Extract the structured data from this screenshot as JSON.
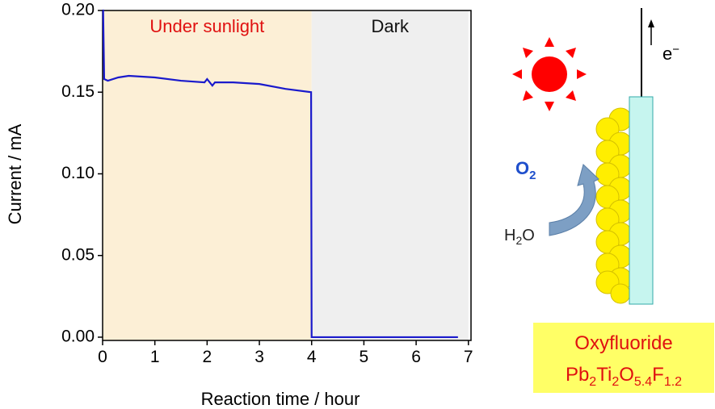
{
  "chart_data": {
    "type": "line",
    "ylabel": "Current / mA",
    "xlabel": "Reaction time / hour",
    "x": [
      0,
      0.01,
      0.03,
      0.1,
      0.3,
      0.5,
      1,
      1.5,
      1.95,
      2.0,
      2.05,
      2.1,
      2.15,
      2.5,
      3,
      3.5,
      3.99,
      4.0,
      4.2,
      5,
      6,
      6.8
    ],
    "values": [
      0.2,
      0.2,
      0.158,
      0.157,
      0.159,
      0.16,
      0.159,
      0.157,
      0.156,
      0.158,
      0.156,
      0.154,
      0.156,
      0.156,
      0.155,
      0.152,
      0.15,
      0.0,
      0.0,
      0.0,
      0.0,
      0.0
    ],
    "color": "#1a1acc",
    "regions": [
      {
        "label": "Under sunlight",
        "start": 0,
        "end": 4,
        "color": "#fcefd6",
        "label_color": "#e01010"
      },
      {
        "label": "Dark",
        "start": 4,
        "end": 7,
        "color": "#efefef",
        "label_color": "#111111"
      }
    ],
    "xlim": [
      0,
      7.05
    ],
    "ylim": [
      -0.002,
      0.2
    ],
    "xticks": [
      0,
      1,
      2,
      3,
      4,
      5,
      6,
      7
    ],
    "yticks": [
      {
        "value": 0.0,
        "label": "0.00"
      },
      0.05,
      {
        "value": 0.1,
        "label": "0.10"
      },
      0.15,
      {
        "value": 0.2,
        "label": "0.20"
      }
    ]
  },
  "diagram": {
    "electron": [
      "e",
      "−"
    ],
    "o2": [
      "O",
      "2"
    ],
    "h2o": [
      "H",
      "2",
      "O"
    ],
    "material": "Oxyfluoride",
    "formula": [
      "Pb",
      "2",
      "Ti",
      "2",
      "O",
      "5.4",
      "F",
      "1.2"
    ]
  }
}
